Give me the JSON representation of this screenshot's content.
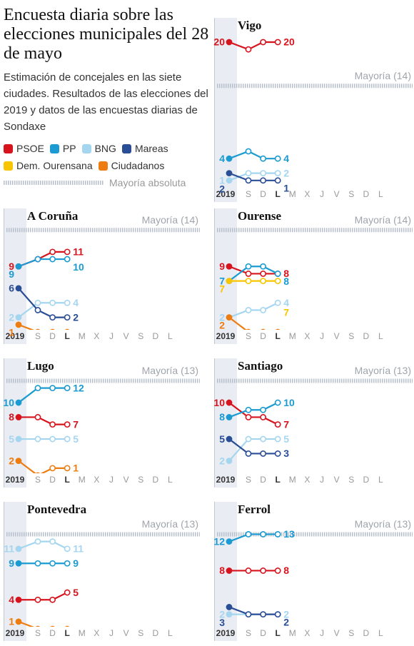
{
  "header": {
    "title": "Encuesta diaria sobre las elecciones municipales del 28 de mayo",
    "subtitle": "Estimación de concejales en las siete ciudades. Resultados de las elecciones del 2019 y datos de las encuestas diarias de Sondaxe"
  },
  "legend": {
    "items": [
      {
        "name": "PSOE",
        "color": "#d7141e"
      },
      {
        "name": "PP",
        "color": "#1b9bd1"
      },
      {
        "name": "BNG",
        "color": "#a5d6f0"
      },
      {
        "name": "Mareas",
        "color": "#2a4e96"
      },
      {
        "name": "Dem. Ourensana",
        "color": "#f7c600"
      },
      {
        "name": "Ciudadanos",
        "color": "#ee7d11"
      }
    ],
    "majority": "Mayoría absoluta"
  },
  "chart_data": [
    {
      "type": "line",
      "title": "Vigo",
      "majority": 14,
      "majority_label": "Mayoría (14)",
      "ylim": [
        0,
        21
      ],
      "categories": [
        "2019",
        "S",
        "D",
        "L",
        "M",
        "X",
        "J",
        "V",
        "S",
        "D",
        "L"
      ],
      "series": [
        {
          "name": "PSOE",
          "color": "#d7141e",
          "values": [
            20,
            19,
            20,
            20,
            null,
            null,
            null,
            null,
            null,
            null,
            null
          ]
        },
        {
          "name": "PP",
          "color": "#1b9bd1",
          "values": [
            4,
            5,
            4,
            4,
            null,
            null,
            null,
            null,
            null,
            null,
            null
          ]
        },
        {
          "name": "BNG",
          "color": "#a5d6f0",
          "values": [
            1,
            2,
            2,
            2,
            null,
            null,
            null,
            null,
            null,
            null,
            null
          ]
        },
        {
          "name": "Mareas",
          "color": "#2a4e96",
          "values": [
            2,
            1,
            1,
            1,
            null,
            null,
            null,
            null,
            null,
            null,
            null
          ]
        }
      ]
    },
    {
      "type": "line",
      "title": "A Coruña",
      "majority": 14,
      "majority_label": "Mayoría (14)",
      "ylim": [
        0.3,
        15
      ],
      "categories": [
        "2019",
        "S",
        "D",
        "L",
        "M",
        "X",
        "J",
        "V",
        "S",
        "D",
        "L"
      ],
      "series": [
        {
          "name": "PSOE",
          "color": "#d7141e",
          "values": [
            9,
            10,
            11,
            11,
            null,
            null,
            null,
            null,
            null,
            null,
            null
          ]
        },
        {
          "name": "PP",
          "color": "#1b9bd1",
          "values": [
            9,
            10,
            10,
            10,
            null,
            null,
            null,
            null,
            null,
            null,
            null
          ]
        },
        {
          "name": "BNG",
          "color": "#a5d6f0",
          "values": [
            2,
            4,
            4,
            4,
            null,
            null,
            null,
            null,
            null,
            null,
            null
          ]
        },
        {
          "name": "Mareas",
          "color": "#2a4e96",
          "values": [
            6,
            3,
            2,
            2,
            null,
            null,
            null,
            null,
            null,
            null,
            null
          ]
        },
        {
          "name": "Ciudadanos",
          "color": "#ee7d11",
          "values": [
            1,
            0,
            0,
            0,
            null,
            null,
            null,
            null,
            null,
            null,
            null
          ]
        }
      ]
    },
    {
      "type": "line",
      "title": "Ourense",
      "majority": 14,
      "majority_label": "Mayoría (14)",
      "ylim": [
        0.3,
        15
      ],
      "categories": [
        "2019",
        "S",
        "D",
        "L",
        "M",
        "X",
        "J",
        "V",
        "S",
        "D",
        "L"
      ],
      "series": [
        {
          "name": "PSOE",
          "color": "#d7141e",
          "values": [
            9,
            8,
            8,
            8,
            null,
            null,
            null,
            null,
            null,
            null,
            null
          ]
        },
        {
          "name": "PP",
          "color": "#1b9bd1",
          "values": [
            7,
            9,
            9,
            8,
            null,
            null,
            null,
            null,
            null,
            null,
            null
          ]
        },
        {
          "name": "BNG",
          "color": "#a5d6f0",
          "values": [
            2,
            3,
            3,
            4,
            null,
            null,
            null,
            null,
            null,
            null,
            null
          ]
        },
        {
          "name": "Dem. Ourensana",
          "color": "#f7c600",
          "values": [
            7,
            7,
            7,
            7,
            null,
            null,
            null,
            null,
            null,
            null,
            null
          ]
        },
        {
          "name": "Ciudadanos",
          "color": "#ee7d11",
          "values": [
            2,
            0,
            0,
            0,
            null,
            null,
            null,
            null,
            null,
            null,
            null
          ]
        }
      ]
    },
    {
      "type": "line",
      "title": "Lugo",
      "majority": 13,
      "majority_label": "Mayoría (13)",
      "ylim": [
        0.3,
        14
      ],
      "categories": [
        "2019",
        "S",
        "D",
        "L",
        "M",
        "X",
        "J",
        "V",
        "S",
        "D",
        "L"
      ],
      "series": [
        {
          "name": "PSOE",
          "color": "#d7141e",
          "values": [
            8,
            8,
            7,
            7,
            null,
            null,
            null,
            null,
            null,
            null,
            null
          ]
        },
        {
          "name": "PP",
          "color": "#1b9bd1",
          "values": [
            10,
            12,
            12,
            12,
            null,
            null,
            null,
            null,
            null,
            null,
            null
          ]
        },
        {
          "name": "BNG",
          "color": "#a5d6f0",
          "values": [
            5,
            5,
            5,
            5,
            null,
            null,
            null,
            null,
            null,
            null,
            null
          ]
        },
        {
          "name": "Ciudadanos",
          "color": "#ee7d11",
          "values": [
            2,
            0,
            1,
            1,
            null,
            null,
            null,
            null,
            null,
            null,
            null
          ]
        }
      ]
    },
    {
      "type": "line",
      "title": "Santiago",
      "majority": 13,
      "majority_label": "Mayoría (13)",
      "ylim": [
        0.3,
        14
      ],
      "categories": [
        "2019",
        "S",
        "D",
        "L",
        "M",
        "X",
        "J",
        "V",
        "S",
        "D",
        "L"
      ],
      "series": [
        {
          "name": "PSOE",
          "color": "#d7141e",
          "values": [
            10,
            8,
            8,
            7,
            null,
            null,
            null,
            null,
            null,
            null,
            null
          ]
        },
        {
          "name": "PP",
          "color": "#1b9bd1",
          "values": [
            8,
            9,
            9,
            10,
            null,
            null,
            null,
            null,
            null,
            null,
            null
          ]
        },
        {
          "name": "BNG",
          "color": "#a5d6f0",
          "values": [
            2,
            5,
            5,
            5,
            null,
            null,
            null,
            null,
            null,
            null,
            null
          ]
        },
        {
          "name": "Mareas",
          "color": "#2a4e96",
          "values": [
            5,
            3,
            3,
            3,
            null,
            null,
            null,
            null,
            null,
            null,
            null
          ]
        }
      ]
    },
    {
      "type": "line",
      "title": "Pontevedra",
      "majority": 13,
      "majority_label": "Mayoría (13)",
      "ylim": [
        0.3,
        14
      ],
      "categories": [
        "2019",
        "S",
        "D",
        "L",
        "M",
        "X",
        "J",
        "V",
        "S",
        "D",
        "L"
      ],
      "series": [
        {
          "name": "PSOE",
          "color": "#d7141e",
          "values": [
            4,
            4,
            4,
            5,
            null,
            null,
            null,
            null,
            null,
            null,
            null
          ]
        },
        {
          "name": "PP",
          "color": "#1b9bd1",
          "values": [
            9,
            9,
            9,
            9,
            null,
            null,
            null,
            null,
            null,
            null,
            null
          ]
        },
        {
          "name": "BNG",
          "color": "#a5d6f0",
          "values": [
            11,
            12,
            12,
            11,
            null,
            null,
            null,
            null,
            null,
            null,
            null
          ]
        },
        {
          "name": "Ciudadanos",
          "color": "#ee7d11",
          "values": [
            1,
            0,
            0,
            0,
            null,
            null,
            null,
            null,
            null,
            null,
            null
          ]
        }
      ]
    },
    {
      "type": "line",
      "title": "Ferrol",
      "majority": 13,
      "majority_label": "Mayoría (13)",
      "ylim": [
        0.3,
        14
      ],
      "categories": [
        "2019",
        "S",
        "D",
        "L",
        "M",
        "X",
        "J",
        "V",
        "S",
        "D",
        "L"
      ],
      "series": [
        {
          "name": "PSOE",
          "color": "#d7141e",
          "values": [
            8,
            8,
            8,
            8,
            null,
            null,
            null,
            null,
            null,
            null,
            null
          ]
        },
        {
          "name": "PP",
          "color": "#1b9bd1",
          "values": [
            12,
            13,
            13,
            13,
            null,
            null,
            null,
            null,
            null,
            null,
            null
          ]
        },
        {
          "name": "BNG",
          "color": "#a5d6f0",
          "values": [
            2,
            2,
            2,
            2,
            null,
            null,
            null,
            null,
            null,
            null,
            null
          ]
        },
        {
          "name": "Mareas",
          "color": "#2a4e96",
          "values": [
            3,
            2,
            2,
            2,
            null,
            null,
            null,
            null,
            null,
            null,
            null
          ]
        }
      ]
    }
  ]
}
